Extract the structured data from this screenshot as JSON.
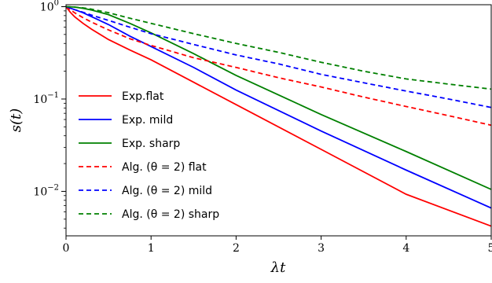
{
  "chart_data": {
    "type": "line",
    "xlabel": "λt",
    "ylabel": "s(t)",
    "xlim": [
      0,
      5
    ],
    "ylim": [
      0.0033,
      1.05
    ],
    "yscale": "log",
    "grid": false,
    "legend_position": "lower-left",
    "x_ticks": [
      {
        "value": 0,
        "label": "0"
      },
      {
        "value": 1,
        "label": "1"
      },
      {
        "value": 2,
        "label": "2"
      },
      {
        "value": 3,
        "label": "3"
      },
      {
        "value": 4,
        "label": "4"
      },
      {
        "value": 5,
        "label": "5"
      }
    ],
    "y_ticks": [
      {
        "value": 1,
        "base": "10",
        "exp": "0"
      },
      {
        "value": 0.1,
        "base": "10",
        "exp": "−1"
      },
      {
        "value": 0.01,
        "base": "10",
        "exp": "−2"
      }
    ],
    "series": [
      {
        "name": "Exp.flat",
        "color": "#ff0000",
        "dash": "solid",
        "x": [
          0,
          0.05,
          0.1,
          0.2,
          0.3,
          0.5,
          0.75,
          1,
          1.5,
          2,
          3,
          4,
          5
        ],
        "y": [
          1,
          0.87,
          0.78,
          0.66,
          0.57,
          0.44,
          0.34,
          0.266,
          0.152,
          0.087,
          0.0285,
          0.0093,
          0.0042
        ]
      },
      {
        "name": "Exp. mild",
        "color": "#0000ff",
        "dash": "solid",
        "x": [
          0,
          0.1,
          0.2,
          0.3,
          0.5,
          0.75,
          1,
          1.5,
          2,
          3,
          4,
          5
        ],
        "y": [
          1,
          0.93,
          0.86,
          0.78,
          0.64,
          0.48,
          0.37,
          0.22,
          0.125,
          0.045,
          0.017,
          0.0066
        ]
      },
      {
        "name": "Exp. sharp",
        "color": "#008000",
        "dash": "solid",
        "x": [
          0,
          0.1,
          0.2,
          0.3,
          0.5,
          0.75,
          1,
          1.5,
          2,
          3,
          4,
          5
        ],
        "y": [
          1,
          0.99,
          0.96,
          0.92,
          0.82,
          0.66,
          0.52,
          0.31,
          0.18,
          0.068,
          0.027,
          0.0105
        ]
      },
      {
        "name": "Alg. (θ = 2) flat",
        "color": "#ff0000",
        "dash": "dashed",
        "x": [
          0,
          0.1,
          0.2,
          0.3,
          0.5,
          0.75,
          1,
          1.5,
          2,
          2.5,
          3,
          3.5,
          4,
          4.5,
          5
        ],
        "y": [
          1,
          0.86,
          0.76,
          0.68,
          0.56,
          0.45,
          0.38,
          0.28,
          0.22,
          0.17,
          0.135,
          0.105,
          0.083,
          0.066,
          0.052
        ]
      },
      {
        "name": "Alg. (θ = 2) mild",
        "color": "#0000ff",
        "dash": "dashed",
        "x": [
          0,
          0.1,
          0.2,
          0.3,
          0.5,
          0.75,
          1,
          1.5,
          2,
          2.5,
          3,
          3.5,
          4,
          4.5,
          5
        ],
        "y": [
          1,
          0.93,
          0.87,
          0.81,
          0.71,
          0.6,
          0.51,
          0.39,
          0.3,
          0.24,
          0.185,
          0.15,
          0.122,
          0.1,
          0.081
        ]
      },
      {
        "name": "Alg. (θ = 2) sharp",
        "color": "#008000",
        "dash": "dashed",
        "x": [
          0,
          0.1,
          0.2,
          0.3,
          0.5,
          0.75,
          1,
          1.5,
          2,
          2.5,
          3,
          3.5,
          4,
          4.5,
          5
        ],
        "y": [
          1,
          0.99,
          0.97,
          0.94,
          0.86,
          0.75,
          0.66,
          0.51,
          0.4,
          0.32,
          0.25,
          0.2,
          0.165,
          0.145,
          0.128
        ]
      }
    ]
  }
}
